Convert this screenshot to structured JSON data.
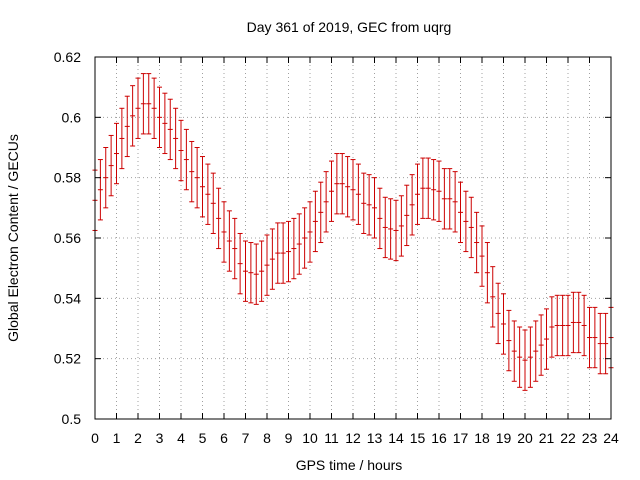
{
  "chart_data": {
    "type": "errorbar",
    "title": "Day 361 of 2019, GEC from uqrg",
    "xlabel": "GPS time / hours",
    "ylabel": "Global Electron Content / GECUs",
    "xlim": [
      0,
      24
    ],
    "ylim": [
      0.5,
      0.62
    ],
    "xticks": [
      0,
      1,
      2,
      3,
      4,
      5,
      6,
      7,
      8,
      9,
      10,
      11,
      12,
      13,
      14,
      15,
      16,
      17,
      18,
      19,
      20,
      21,
      22,
      23,
      24
    ],
    "xtick_labels": [
      "0",
      "1",
      "2",
      "3",
      "4",
      "5",
      "6",
      "7",
      "8",
      "9",
      "10",
      "11",
      "12",
      "13",
      "14",
      "15",
      "16",
      "17",
      "18",
      "19",
      "20",
      "21",
      "22",
      "23",
      "24"
    ],
    "yticks": [
      0.5,
      0.52,
      0.54,
      0.56,
      0.58,
      0.6,
      0.62
    ],
    "ytick_labels": [
      "0.5",
      "0.52",
      "0.54",
      "0.56",
      "0.58",
      "0.6",
      "0.62"
    ],
    "grid": true,
    "color": "#cc0000",
    "error": 0.01,
    "series": [
      {
        "name": "GEC",
        "x": [
          0,
          0.25,
          0.5,
          0.75,
          1,
          1.25,
          1.5,
          1.75,
          2,
          2.25,
          2.5,
          2.75,
          3,
          3.25,
          3.5,
          3.75,
          4,
          4.25,
          4.5,
          4.75,
          5,
          5.25,
          5.5,
          5.75,
          6,
          6.25,
          6.5,
          6.75,
          7,
          7.25,
          7.5,
          7.75,
          8,
          8.25,
          8.5,
          8.75,
          9,
          9.25,
          9.5,
          9.75,
          10,
          10.25,
          10.5,
          10.75,
          11,
          11.25,
          11.5,
          11.75,
          12,
          12.25,
          12.5,
          12.75,
          13,
          13.25,
          13.5,
          13.75,
          14,
          14.25,
          14.5,
          14.75,
          15,
          15.25,
          15.5,
          15.75,
          16,
          16.25,
          16.5,
          16.75,
          17,
          17.25,
          17.5,
          17.75,
          18,
          18.25,
          18.5,
          18.75,
          19,
          19.25,
          19.5,
          19.75,
          20,
          20.25,
          20.5,
          20.75,
          21,
          21.25,
          21.5,
          21.75,
          22,
          22.25,
          22.5,
          22.75,
          23,
          23.25,
          23.5,
          23.75,
          24
        ],
        "y": [
          0.5725,
          0.576,
          0.58,
          0.584,
          0.588,
          0.593,
          0.597,
          0.6005,
          0.603,
          0.6045,
          0.6045,
          0.603,
          0.6,
          0.598,
          0.596,
          0.593,
          0.589,
          0.586,
          0.582,
          0.58,
          0.577,
          0.5745,
          0.5715,
          0.5665,
          0.562,
          0.559,
          0.5565,
          0.5515,
          0.549,
          0.5485,
          0.548,
          0.549,
          0.551,
          0.553,
          0.555,
          0.555,
          0.5555,
          0.5565,
          0.558,
          0.56,
          0.562,
          0.5655,
          0.5685,
          0.572,
          0.5755,
          0.578,
          0.578,
          0.577,
          0.576,
          0.5745,
          0.5715,
          0.571,
          0.57,
          0.5665,
          0.5635,
          0.563,
          0.5625,
          0.564,
          0.5675,
          0.571,
          0.5745,
          0.5765,
          0.5765,
          0.576,
          0.5755,
          0.573,
          0.573,
          0.572,
          0.5685,
          0.5655,
          0.5635,
          0.5585,
          0.554,
          0.5485,
          0.5405,
          0.535,
          0.5315,
          0.526,
          0.5225,
          0.5205,
          0.5195,
          0.5205,
          0.5225,
          0.5245,
          0.5265,
          0.5305,
          0.531,
          0.531,
          0.531,
          0.532,
          0.532,
          0.531,
          0.527,
          0.527,
          0.525,
          0.525,
          0.527
        ]
      }
    ]
  }
}
